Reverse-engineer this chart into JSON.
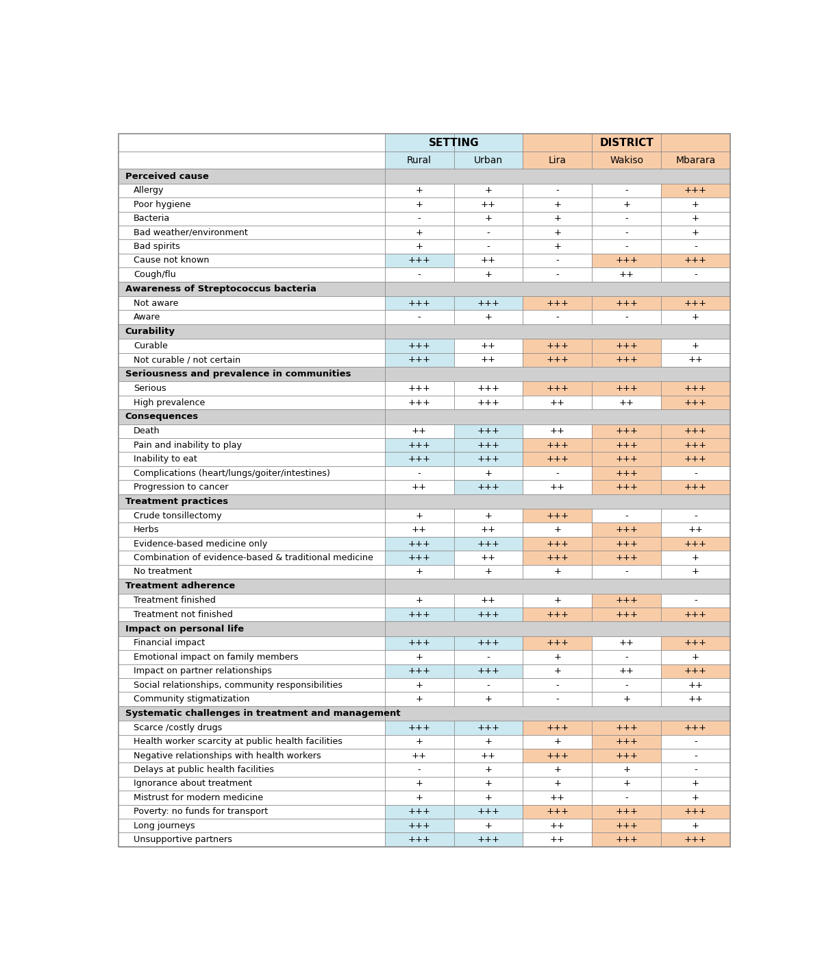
{
  "setting_header": "SETTING",
  "district_header": "DISTRICT",
  "col_headers": [
    "Rural",
    "Urban",
    "Lira",
    "Wakiso",
    "Mbarara"
  ],
  "setting_color": "#cce8f0",
  "district_color": "#f9cca8",
  "section_bg": "#d0d0d0",
  "sections": [
    {
      "title": "Perceived cause",
      "rows": [
        {
          "label": "Allergy",
          "values": [
            "+",
            "+",
            "-",
            "-",
            "+++"
          ],
          "highlights": [
            null,
            null,
            null,
            null,
            "district"
          ]
        },
        {
          "label": "Poor hygiene",
          "values": [
            "+",
            "++",
            "+",
            "+",
            "+"
          ],
          "highlights": [
            null,
            null,
            null,
            null,
            null
          ]
        },
        {
          "label": "Bacteria",
          "values": [
            "-",
            "+",
            "+",
            "-",
            "+"
          ],
          "highlights": [
            null,
            null,
            null,
            null,
            null
          ]
        },
        {
          "label": "Bad weather/environment",
          "values": [
            "+",
            "-",
            "+",
            "-",
            "+"
          ],
          "highlights": [
            null,
            null,
            null,
            null,
            null
          ]
        },
        {
          "label": "Bad spirits",
          "values": [
            "+",
            "-",
            "+",
            "-",
            "-"
          ],
          "highlights": [
            null,
            null,
            null,
            null,
            null
          ]
        },
        {
          "label": "Cause not known",
          "values": [
            "+++",
            "++",
            "-",
            "+++",
            "+++"
          ],
          "highlights": [
            "setting",
            null,
            null,
            "district",
            "district"
          ]
        },
        {
          "label": "Cough/flu",
          "values": [
            "-",
            "+",
            "-",
            "++",
            "-"
          ],
          "highlights": [
            null,
            null,
            null,
            null,
            null
          ]
        }
      ]
    },
    {
      "title": "Awareness of Streptococcus bacteria",
      "rows": [
        {
          "label": "Not aware",
          "values": [
            "+++",
            "+++",
            "+++",
            "+++",
            "+++"
          ],
          "highlights": [
            "setting",
            "setting",
            "district",
            "district",
            "district"
          ]
        },
        {
          "label": "Aware",
          "values": [
            "-",
            "+",
            "-",
            "-",
            "+"
          ],
          "highlights": [
            null,
            null,
            null,
            null,
            null
          ]
        }
      ]
    },
    {
      "title": "Curability",
      "rows": [
        {
          "label": "Curable",
          "values": [
            "+++",
            "++",
            "+++",
            "+++",
            "+"
          ],
          "highlights": [
            "setting",
            null,
            "district",
            "district",
            null
          ]
        },
        {
          "label": "Not curable / not certain",
          "values": [
            "+++",
            "++",
            "+++",
            "+++",
            "++"
          ],
          "highlights": [
            "setting",
            null,
            "district",
            "district",
            null
          ]
        }
      ]
    },
    {
      "title": "Seriousness and prevalence in communities",
      "rows": [
        {
          "label": "Serious",
          "values": [
            "+++",
            "+++",
            "+++",
            "+++",
            "+++"
          ],
          "highlights": [
            null,
            null,
            "district",
            "district",
            "district"
          ]
        },
        {
          "label": "High prevalence",
          "values": [
            "+++",
            "+++",
            "++",
            "++",
            "+++"
          ],
          "highlights": [
            null,
            null,
            null,
            null,
            "district"
          ]
        }
      ]
    },
    {
      "title": "Consequences",
      "rows": [
        {
          "label": "Death",
          "values": [
            "++",
            "+++",
            "++",
            "+++",
            "+++"
          ],
          "highlights": [
            null,
            "setting",
            null,
            "district",
            "district"
          ]
        },
        {
          "label": "Pain and inability to play",
          "values": [
            "+++",
            "+++",
            "+++",
            "+++",
            "+++"
          ],
          "highlights": [
            "setting",
            "setting",
            "district",
            "district",
            "district"
          ]
        },
        {
          "label": "Inability to eat",
          "values": [
            "+++",
            "+++",
            "+++",
            "+++",
            "+++"
          ],
          "highlights": [
            "setting",
            "setting",
            "district",
            "district",
            "district"
          ]
        },
        {
          "label": "Complications (heart/lungs/goiter/intestines)",
          "values": [
            "-",
            "+",
            "-",
            "+++",
            "-"
          ],
          "highlights": [
            null,
            null,
            null,
            "district",
            null
          ]
        },
        {
          "label": "Progression to cancer",
          "values": [
            "++",
            "+++",
            "++",
            "+++",
            "+++"
          ],
          "highlights": [
            null,
            "setting",
            null,
            "district",
            "district"
          ]
        }
      ]
    },
    {
      "title": "Treatment practices",
      "rows": [
        {
          "label": "Crude tonsillectomy",
          "values": [
            "+",
            "+",
            "+++",
            "-",
            "-"
          ],
          "highlights": [
            null,
            null,
            "district",
            null,
            null
          ]
        },
        {
          "label": "Herbs",
          "values": [
            "++",
            "++",
            "+",
            "+++",
            "++"
          ],
          "highlights": [
            null,
            null,
            null,
            "district",
            null
          ]
        },
        {
          "label": "Evidence-based medicine only",
          "values": [
            "+++",
            "+++",
            "+++",
            "+++",
            "+++"
          ],
          "highlights": [
            "setting",
            "setting",
            "district",
            "district",
            "district"
          ]
        },
        {
          "label": "Combination of evidence-based & traditional medicine",
          "values": [
            "+++",
            "++",
            "+++",
            "+++",
            "+"
          ],
          "highlights": [
            "setting",
            null,
            "district",
            "district",
            null
          ]
        },
        {
          "label": "No treatment",
          "values": [
            "+",
            "+",
            "+",
            "-",
            "+"
          ],
          "highlights": [
            null,
            null,
            null,
            null,
            null
          ]
        }
      ]
    },
    {
      "title": "Treatment adherence",
      "rows": [
        {
          "label": "Treatment finished",
          "values": [
            "+",
            "++",
            "+",
            "+++",
            "-"
          ],
          "highlights": [
            null,
            null,
            null,
            "district",
            null
          ]
        },
        {
          "label": "Treatment not finished",
          "values": [
            "+++",
            "+++",
            "+++",
            "+++",
            "+++"
          ],
          "highlights": [
            "setting",
            "setting",
            "district",
            "district",
            "district"
          ]
        }
      ]
    },
    {
      "title": "Impact on personal life",
      "rows": [
        {
          "label": "Financial impact",
          "values": [
            "+++",
            "+++",
            "+++",
            "++",
            "+++"
          ],
          "highlights": [
            "setting",
            "setting",
            "district",
            null,
            "district"
          ]
        },
        {
          "label": "Emotional impact on family members",
          "values": [
            "+",
            "-",
            "+",
            "-",
            "+"
          ],
          "highlights": [
            null,
            null,
            null,
            null,
            null
          ]
        },
        {
          "label": "Impact on partner relationships",
          "values": [
            "+++",
            "+++",
            "+",
            "++",
            "+++"
          ],
          "highlights": [
            "setting",
            "setting",
            null,
            null,
            "district"
          ]
        },
        {
          "label": "Social relationships, community responsibilities",
          "values": [
            "+",
            "-",
            "-",
            "-",
            "++"
          ],
          "highlights": [
            null,
            null,
            null,
            null,
            null
          ]
        },
        {
          "label": "Community stigmatization",
          "values": [
            "+",
            "+",
            "-",
            "+",
            "++"
          ],
          "highlights": [
            null,
            null,
            null,
            null,
            null
          ]
        }
      ]
    },
    {
      "title": "Systematic challenges in treatment and management",
      "rows": [
        {
          "label": "Scarce /costly drugs",
          "values": [
            "+++",
            "+++",
            "+++",
            "+++",
            "+++"
          ],
          "highlights": [
            "setting",
            "setting",
            "district",
            "district",
            "district"
          ]
        },
        {
          "label": "Health worker scarcity at public health facilities",
          "values": [
            "+",
            "+",
            "+",
            "+++",
            "-"
          ],
          "highlights": [
            null,
            null,
            null,
            "district",
            null
          ]
        },
        {
          "label": "Negative relationships with health workers",
          "values": [
            "++",
            "++",
            "+++",
            "+++",
            "-"
          ],
          "highlights": [
            null,
            null,
            "district",
            "district",
            null
          ]
        },
        {
          "label": "Delays at public health facilities",
          "values": [
            "-",
            "+",
            "+",
            "+",
            "-"
          ],
          "highlights": [
            null,
            null,
            null,
            null,
            null
          ]
        },
        {
          "label": "Ignorance about treatment",
          "values": [
            "+",
            "+",
            "+",
            "+",
            "+"
          ],
          "highlights": [
            null,
            null,
            null,
            null,
            null
          ]
        },
        {
          "label": "Mistrust for modern medicine",
          "values": [
            "+",
            "+",
            "++",
            "-",
            "+"
          ],
          "highlights": [
            null,
            null,
            null,
            null,
            null
          ]
        },
        {
          "label": "Poverty: no funds for transport",
          "values": [
            "+++",
            "+++",
            "+++",
            "+++",
            "+++"
          ],
          "highlights": [
            "setting",
            "setting",
            "district",
            "district",
            "district"
          ]
        },
        {
          "label": "Long journeys",
          "values": [
            "+++",
            "+",
            "++",
            "+++",
            "+"
          ],
          "highlights": [
            "setting",
            null,
            null,
            "district",
            null
          ]
        },
        {
          "label": "Unsupportive partners",
          "values": [
            "+++",
            "+++",
            "++",
            "+++",
            "+++"
          ],
          "highlights": [
            "setting",
            "setting",
            null,
            "district",
            "district"
          ]
        }
      ]
    }
  ]
}
